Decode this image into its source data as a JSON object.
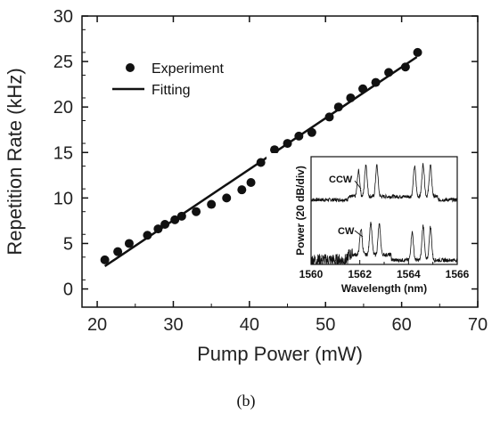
{
  "caption": "(b)",
  "chart_data": [
    {
      "type": "scatter",
      "xlabel": "Pump Power (mW)",
      "ylabel": "Repetition Rate (kHz)",
      "xlim": [
        18,
        70
      ],
      "ylim": [
        -2,
        30
      ],
      "xticks": [
        20,
        30,
        40,
        50,
        60,
        70
      ],
      "yticks": [
        0,
        5,
        10,
        15,
        20,
        25,
        30
      ],
      "grid": false,
      "legend_position": "top-left",
      "series": [
        {
          "name": "Experiment",
          "marker": "circle",
          "x": [
            21.0,
            22.7,
            24.2,
            26.6,
            28.0,
            28.9,
            30.2,
            31.1,
            33.0,
            35.0,
            37.0,
            39.0,
            40.2,
            41.5,
            43.3,
            45.0,
            46.5,
            48.2,
            50.5,
            51.7,
            53.3,
            54.9,
            56.6,
            58.3,
            60.5,
            62.1
          ],
          "y": [
            3.2,
            4.1,
            5.0,
            5.9,
            6.6,
            7.1,
            7.6,
            8.0,
            8.5,
            9.3,
            10.0,
            10.9,
            11.7,
            13.9,
            15.3,
            16.0,
            16.8,
            17.2,
            18.9,
            20.0,
            21.0,
            22.0,
            22.7,
            23.8,
            24.4,
            26.0
          ]
        },
        {
          "name": "Fitting",
          "style": "line",
          "x": [
            21.0,
            62.0
          ],
          "y": [
            2.5,
            25.5
          ]
        }
      ]
    },
    {
      "type": "line",
      "xlabel": "Wavelength (nm)",
      "ylabel": "Power (20 dB/div)",
      "xlim": [
        1560,
        1566
      ],
      "xticks": [
        1560,
        1562,
        1564,
        1566
      ],
      "position": "inset-bottom-right",
      "annotations": [
        "CCW",
        "CW"
      ],
      "series": [
        {
          "name": "CCW",
          "base_level": 0.6,
          "peaks": [
            {
              "x": 1561.95,
              "h": 0.24
            },
            {
              "x": 1562.25,
              "h": 0.3
            },
            {
              "x": 1562.7,
              "h": 0.29
            },
            {
              "x": 1564.25,
              "h": 0.28
            },
            {
              "x": 1564.6,
              "h": 0.3
            },
            {
              "x": 1564.9,
              "h": 0.29
            }
          ]
        },
        {
          "name": "CW",
          "base_level": 0.04,
          "peaks": [
            {
              "x": 1562.05,
              "h": 0.24
            },
            {
              "x": 1562.45,
              "h": 0.3
            },
            {
              "x": 1562.8,
              "h": 0.28
            },
            {
              "x": 1564.15,
              "h": 0.26
            },
            {
              "x": 1564.6,
              "h": 0.32
            },
            {
              "x": 1564.9,
              "h": 0.31
            }
          ]
        }
      ]
    }
  ]
}
